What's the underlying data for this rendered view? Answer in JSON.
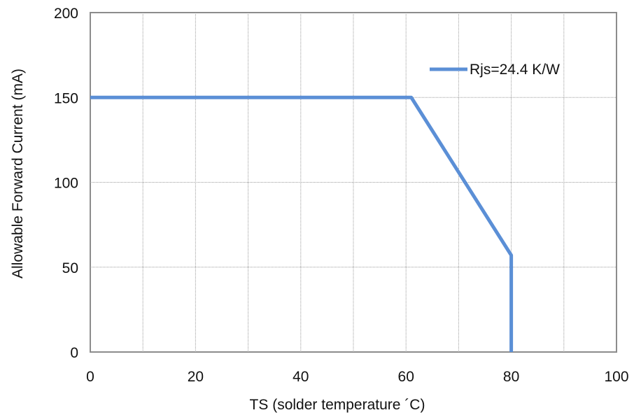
{
  "chart_data": {
    "type": "line",
    "xlabel": "TS  (solder temperature ´C)",
    "ylabel": "Allowable  Forward Current (mA)",
    "xlim": [
      0,
      100
    ],
    "ylim": [
      0,
      200
    ],
    "x_ticks": [
      0,
      20,
      40,
      60,
      80,
      100
    ],
    "y_ticks": [
      0,
      50,
      100,
      150,
      200
    ],
    "x_grid": [
      10,
      20,
      30,
      40,
      50,
      60,
      70,
      80,
      90
    ],
    "y_grid": [
      50,
      100,
      150
    ],
    "grid": true,
    "legend_position": "top-right",
    "series": [
      {
        "name": "Rjs=24.4 K/W",
        "color": "#5b8fd6",
        "x": [
          0,
          61,
          80,
          80
        ],
        "y": [
          150,
          150,
          57,
          0
        ]
      }
    ]
  }
}
